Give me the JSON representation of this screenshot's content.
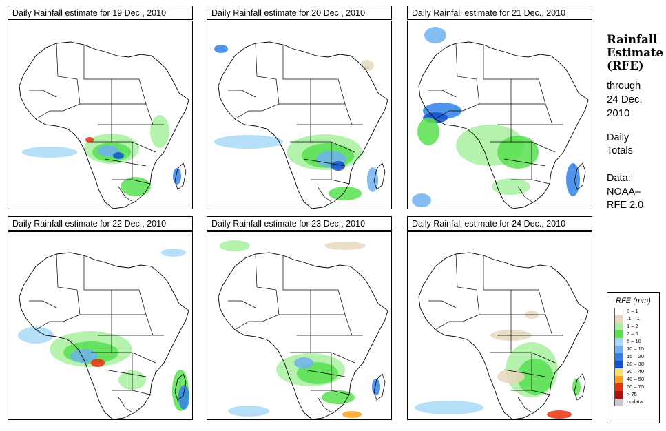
{
  "panels": [
    {
      "title": "Daily Rainfall estimate for  19 Dec., 2010"
    },
    {
      "title": "Daily Rainfall estimate for  20 Dec., 2010"
    },
    {
      "title": "Daily Rainfall estimate for  21 Dec., 2010"
    },
    {
      "title": "Daily Rainfall estimate for  22 Dec., 2010"
    },
    {
      "title": "Daily Rainfall estimate for  23 Dec., 2010"
    },
    {
      "title": "Daily Rainfall estimate for  24 Dec., 2010"
    }
  ],
  "sidebar": {
    "title_line1": "Rainfall",
    "title_line2": "Estimate",
    "title_line3": "(RFE)",
    "through": "through",
    "date_line1": "24 Dec.",
    "date_line2": "2010",
    "daily": "Daily",
    "totals": "Totals",
    "data_label": "Data:",
    "source_line1": "NOAA–",
    "source_line2": "RFE 2.0"
  },
  "legend": {
    "title": "RFE (mm)",
    "items": [
      {
        "label": "0 – 1",
        "color": "#ffffff"
      },
      {
        "label": ".1 – 1",
        "color": "#e8d8bc"
      },
      {
        "label": "1 – 2",
        "color": "#a8f0a0"
      },
      {
        "label": "2 – 5",
        "color": "#58e050"
      },
      {
        "label": "5 – 10",
        "color": "#a8d8f8"
      },
      {
        "label": "10 – 15",
        "color": "#70b0f0"
      },
      {
        "label": "15 – 20",
        "color": "#3080e8"
      },
      {
        "label": "20 – 30",
        "color": "#1050d0"
      },
      {
        "label": "30 – 40",
        "color": "#f8e070"
      },
      {
        "label": "40 – 50",
        "color": "#f8a020"
      },
      {
        "label": "50 – 75",
        "color": "#e83010"
      },
      {
        "label": "> 75",
        "color": "#b01010"
      },
      {
        "label": "nodata",
        "color": "#c8c8c8"
      }
    ]
  }
}
